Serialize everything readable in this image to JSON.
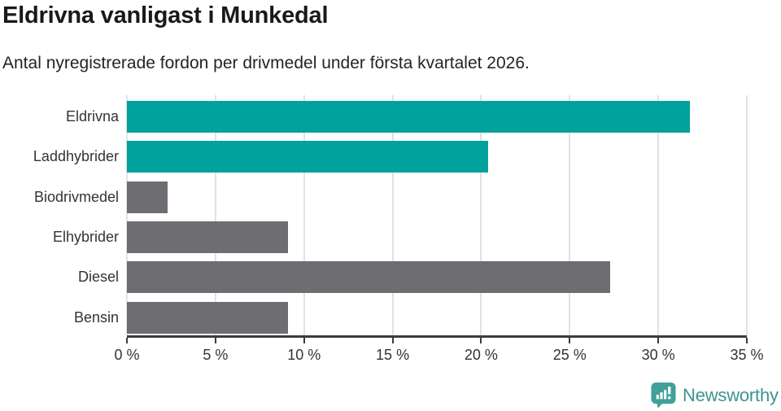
{
  "header": {
    "title": "Eldrivna vanligast i Munkedal",
    "subtitle": "Antal nyregistrerade fordon per drivmedel under första kvartalet 2026."
  },
  "chart_data": {
    "type": "bar",
    "orientation": "horizontal",
    "title": "Eldrivna vanligast i Munkedal",
    "subtitle": "Antal nyregistrerade fordon per drivmedel under första kvartalet 2026.",
    "categories": [
      "Eldrivna",
      "Laddhybrider",
      "Biodrivmedel",
      "Elhybrider",
      "Diesel",
      "Bensin"
    ],
    "values": [
      31.8,
      20.4,
      2.3,
      9.1,
      27.3,
      9.1
    ],
    "unit": "%",
    "bar_colors": [
      "#00a29b",
      "#00a29b",
      "#6d6d72",
      "#6d6d72",
      "#6d6d72",
      "#6d6d72"
    ],
    "xlim": [
      0,
      35
    ],
    "x_ticks": [
      0,
      5,
      10,
      15,
      20,
      25,
      30,
      35
    ],
    "x_tick_labels": [
      "0 %",
      "5 %",
      "10 %",
      "15 %",
      "20 %",
      "25 %",
      "30 %",
      "35 %"
    ],
    "xlabel": "",
    "ylabel": "",
    "grid": "vertical",
    "legend_position": "none"
  },
  "colors": {
    "accent_teal": "#00a29b",
    "neutral_gray": "#6d6d72",
    "gridline": "#e2e2e2",
    "axis": "#3c3c3c",
    "text": "#333333",
    "brand": "#3b948f"
  },
  "footer": {
    "brand": "Newsworthy"
  }
}
